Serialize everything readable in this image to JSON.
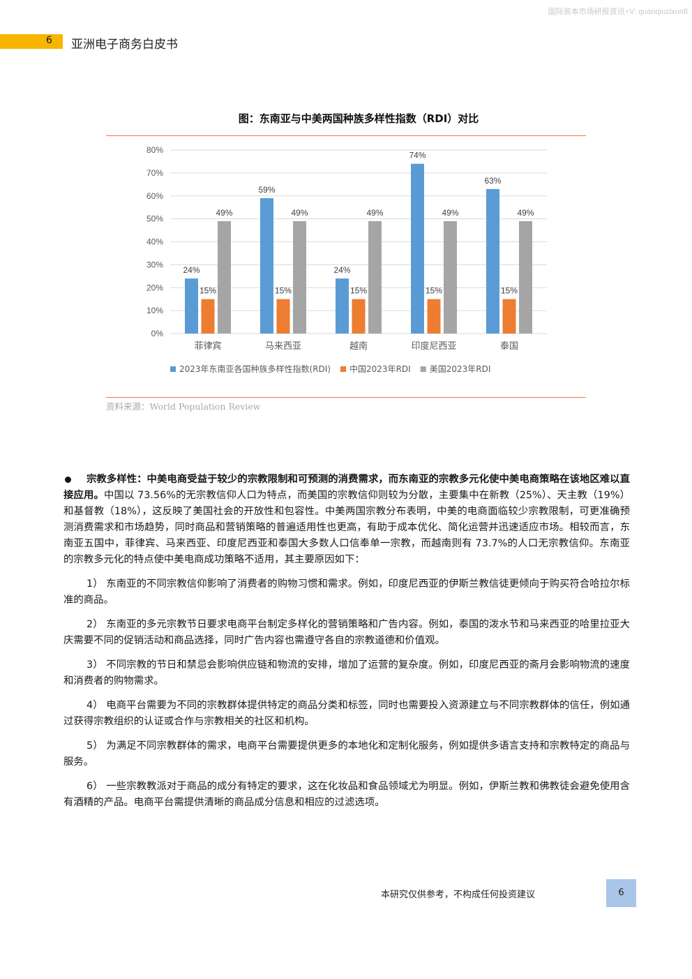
{
  "watermark": "国际资本市场研报资讯+V: quanqiuzixun8",
  "header": {
    "page_number": "6",
    "title": "亚洲电子商务白皮书"
  },
  "figure": {
    "title": "图：东南亚与中美两国种族多样性指数（RDI）对比",
    "source": "资料来源：World Population Review"
  },
  "chart_data": {
    "type": "bar",
    "title": "图：东南亚与中美两国种族多样性指数（RDI）对比",
    "categories": [
      "菲律宾",
      "马来西亚",
      "越南",
      "印度尼西亚",
      "泰国"
    ],
    "series": [
      {
        "name": "2023年东南亚各国种族多样性指数(RDI)",
        "values": [
          24,
          59,
          24,
          74,
          63
        ],
        "labels": [
          "24%",
          "59%",
          "24%",
          "74%",
          "63%"
        ],
        "color": "#5b9bd5"
      },
      {
        "name": "中国2023年RDI",
        "values": [
          15,
          15,
          15,
          15,
          15
        ],
        "labels": [
          "15%",
          "15%",
          "15%",
          "15%",
          "15%"
        ],
        "color": "#ed7d31"
      },
      {
        "name": "美国2023年RDI",
        "values": [
          49,
          49,
          49,
          49,
          49
        ],
        "labels": [
          "49%",
          "49%",
          "49%",
          "49%",
          "49%"
        ],
        "color": "#a5a5a5"
      }
    ],
    "ylim": [
      0,
      80
    ],
    "yticks": [
      "0%",
      "10%",
      "20%",
      "30%",
      "40%",
      "50%",
      "60%",
      "70%",
      "80%"
    ],
    "grid": true,
    "legend": "bottom"
  },
  "body": {
    "bullet_bold": "宗教多样性：中美电商受益于较少的宗教限制和可预测的消费需求，而东南亚的宗教多元化使中美电商策略在该地区难以直接应用。",
    "bullet_text": "中国以 73.56%的无宗教信仰人口为特点，而美国的宗教信仰则较为分散，主要集中在新教（25%）、天主教（19%）和基督教（18%），这反映了美国社会的开放性和包容性。中美两国宗教分布表明，中美的电商面临较少宗教限制，可更准确预测消费需求和市场趋势，同时商品和营销策略的普遍适用性也更高，有助于成本优化、简化运营并迅速适应市场。相较而言，东南亚五国中，菲律宾、马来西亚、印度尼西亚和泰国大多数人口信奉单一宗教，而越南则有 73.7%的人口无宗教信仰。东南亚的宗教多元化的特点使中美电商成功策略不适用，其主要原因如下：",
    "items": [
      "1）  东南亚的不同宗教信仰影响了消费者的购物习惯和需求。例如，印度尼西亚的伊斯兰教信徒更倾向于购买符合哈拉尔标准的商品。",
      "2）  东南亚的多元宗教节日要求电商平台制定多样化的营销策略和广告内容。例如，泰国的泼水节和马来西亚的哈里拉亚大庆需要不同的促销活动和商品选择，同时广告内容也需遵守各自的宗教道德和价值观。",
      "3）  不同宗教的节日和禁忌会影响供应链和物流的安排，增加了运营的复杂度。例如，印度尼西亚的斋月会影响物流的速度和消费者的购物需求。",
      "4）  电商平台需要为不同的宗教群体提供特定的商品分类和标签，同时也需要投入资源建立与不同宗教群体的信任，例如通过获得宗教组织的认证或合作与宗教相关的社区和机构。",
      "5）  为满足不同宗教群体的需求，电商平台需要提供更多的本地化和定制化服务，例如提供多语言支持和宗教特定的商品与服务。",
      "6）  一些宗教教派对于商品的成分有特定的要求，这在化妆品和食品领域尤为明显。例如，伊斯兰教和佛教徒会避免使用含有酒精的产品。电商平台需提供清晰的商品成分信息和相应的过滤选项。"
    ]
  },
  "footer": {
    "disclaimer": "本研究仅供参考，不构成任何投资建议",
    "page_number": "6"
  }
}
